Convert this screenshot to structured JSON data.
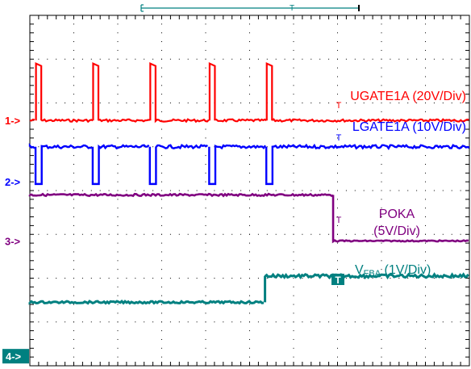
{
  "chart_data": {
    "type": "line",
    "title": "",
    "xlabel": "",
    "ylabel": "",
    "grid": true,
    "divisions": {
      "x": 10,
      "y": 8
    },
    "series": [
      {
        "name": "UGATE1A (20V/Div)",
        "color": "#ff0000",
        "marker": "1->",
        "marker_level_div": 5.6,
        "baseline_div": 5.6,
        "pulse_high_div": 6.9,
        "pulse_centers_div": [
          0.2,
          1.5,
          2.8,
          4.15,
          5.45
        ],
        "pulse_width_div": 0.12
      },
      {
        "name": "LGATE1A (10V/Div)",
        "color": "#0000ff",
        "marker": "2->",
        "marker_level_div": 4.2,
        "high_div": 5.0,
        "notch_low_div": 4.15,
        "notch_centers_div": [
          0.2,
          1.5,
          2.8,
          4.15,
          5.45
        ],
        "notch_width_div": 0.14
      },
      {
        "name_line1": "POKA",
        "name_line2": "(5V/Div)",
        "color": "#800080",
        "marker": "3->",
        "marker_level_div": 2.85,
        "high_div": 3.9,
        "low_div": 2.85,
        "step_time_div": 6.9
      },
      {
        "name_main": "V",
        "name_sub": "FBA",
        "name_suffix": " (1V/Div)",
        "color": "#008080",
        "marker": "4->",
        "marker_level_div": 0.2,
        "low_div": 1.45,
        "high_div": 2.05,
        "step_time_div": 5.35
      }
    ],
    "trigger_flag": "T",
    "cursor_flag": "T"
  }
}
